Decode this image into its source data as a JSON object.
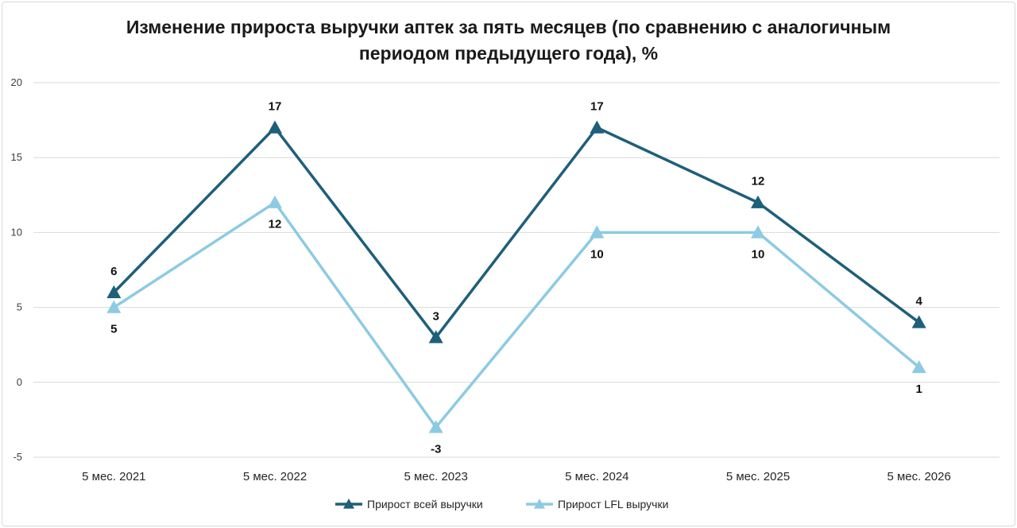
{
  "chart_data": {
    "type": "line",
    "title_line1": "Изменение прироста выручки аптек за пять месяцев (по сравнению с аналогичным",
    "title_line2": "периодом предыдущего года), %",
    "categories": [
      "5 мес. 2021",
      "5 мес. 2022",
      "5 мес. 2023",
      "5 мес. 2024",
      "5 мес. 2025",
      "5 мес. 2026"
    ],
    "ylim": [
      -5,
      20
    ],
    "yticks": [
      "-5",
      "0",
      "5",
      "10",
      "15",
      "20"
    ],
    "grid": true,
    "legend_position": "bottom",
    "series": [
      {
        "name": "Прирост всей выручки",
        "color": "#1e5f7a",
        "marker": "triangle",
        "values": [
          6,
          17,
          3,
          17,
          12,
          4
        ],
        "labels": [
          "6",
          "17",
          "3",
          "17",
          "12",
          "4"
        ]
      },
      {
        "name": "Прирост LFL выручки",
        "color": "#8ccbe2",
        "marker": "triangle",
        "values": [
          5,
          12,
          -3,
          10,
          10,
          1
        ],
        "labels": [
          "5",
          "12",
          "-3",
          "10",
          "10",
          "1"
        ]
      }
    ]
  }
}
